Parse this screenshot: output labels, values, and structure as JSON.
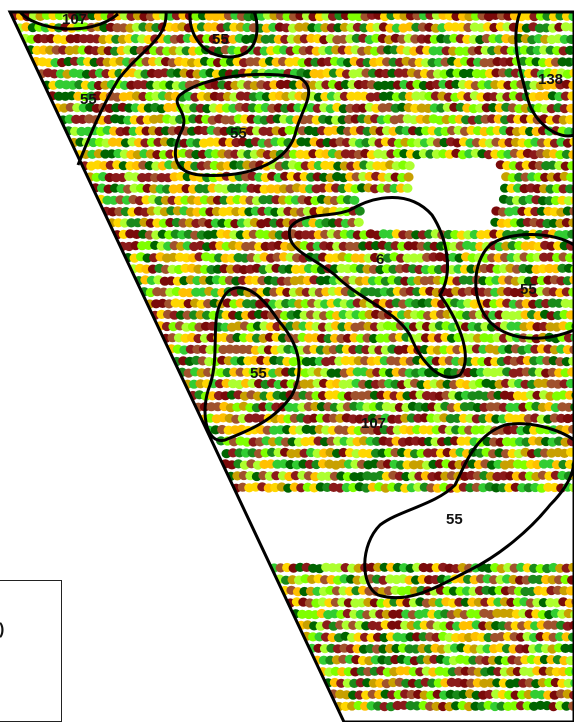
{
  "map": {
    "type": "yield-map-contours",
    "contour_labels": [
      "107",
      "55",
      "55",
      "55",
      "138",
      "6",
      "55",
      "55",
      "107",
      "55"
    ],
    "swath_colors": [
      "#7a0a0a",
      "#8b1a1a",
      "#a0522d",
      "#c8a000",
      "#ffc000",
      "#ffd700",
      "#adff2f",
      "#7fff00",
      "#32cd32",
      "#1a8a1a",
      "#006400"
    ]
  },
  "legend": {
    "fragment_text": ")"
  }
}
